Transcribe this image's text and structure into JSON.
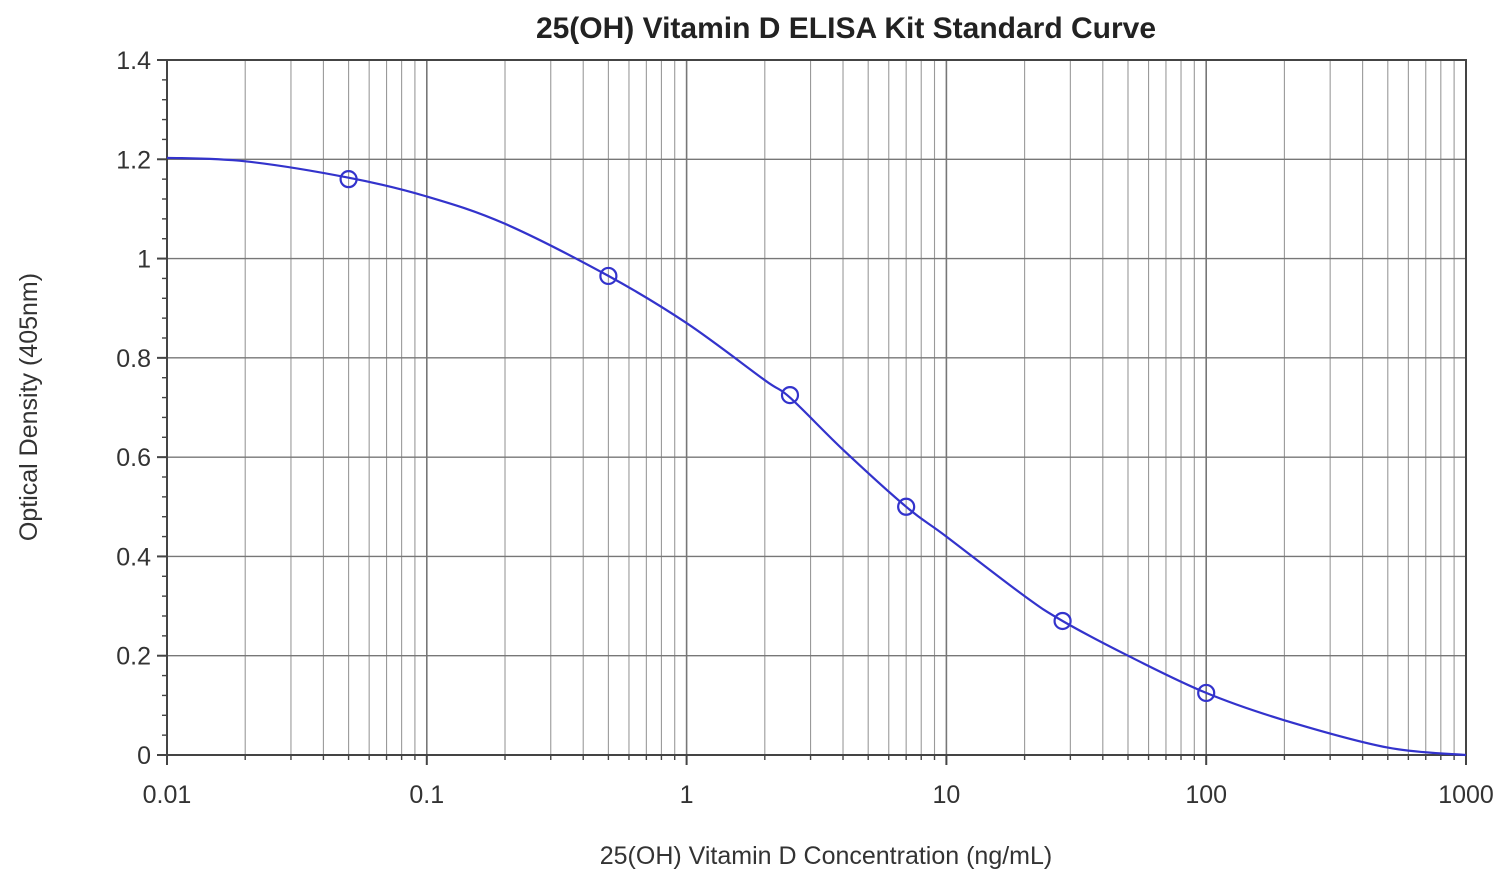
{
  "chart_data": {
    "type": "scatter",
    "title": "25(OH) Vitamin D ELISA Kit Standard Curve",
    "xlabel": "25(OH) Vitamin D Concentration (ng/mL)",
    "ylabel": "Optical Density (405nm)",
    "x_scale": "log",
    "xlim": [
      0.01,
      1000
    ],
    "ylim": [
      0,
      1.4
    ],
    "x_ticks": [
      0.01,
      0.1,
      1,
      10,
      100,
      1000
    ],
    "x_tick_labels": [
      "0.01",
      "0.1",
      "1",
      "10",
      "100",
      "1000"
    ],
    "y_ticks": [
      0,
      0.2,
      0.4,
      0.6,
      0.8,
      1,
      1.2,
      1.4
    ],
    "y_tick_labels": [
      "0",
      "0.2",
      "0.4",
      "0.6",
      "0.8",
      "1",
      "1.2",
      "1.4"
    ],
    "grid": true,
    "series": [
      {
        "kind": "points",
        "marker": "open-circle",
        "color": "#3333cc",
        "x": [
          0.05,
          0.5,
          2.5,
          7,
          28,
          100
        ],
        "y": [
          1.16,
          0.965,
          0.725,
          0.5,
          0.27,
          0.125
        ]
      },
      {
        "kind": "fit-curve",
        "color": "#3333cc",
        "x": [
          0.01,
          0.02,
          0.05,
          0.1,
          0.2,
          0.5,
          1,
          2,
          2.5,
          4,
          7,
          10,
          20,
          28,
          50,
          100,
          200,
          500,
          1000
        ],
        "y": [
          1.203,
          1.196,
          1.163,
          1.125,
          1.07,
          0.965,
          0.87,
          0.755,
          0.72,
          0.615,
          0.5,
          0.44,
          0.32,
          0.27,
          0.2,
          0.125,
          0.07,
          0.015,
          0.0
        ]
      }
    ]
  }
}
